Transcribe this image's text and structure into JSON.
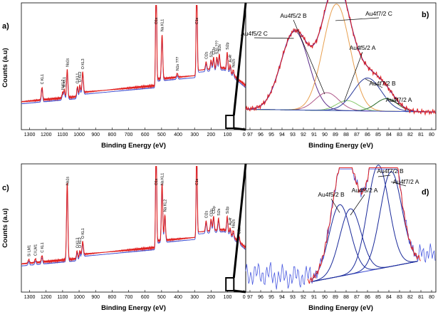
{
  "panels": [
    {
      "id": "a",
      "label": "a)",
      "type": "line",
      "xlabel": "Binding Energy (eV)",
      "ylabel": "Counts (a.u)",
      "x_reversed": true,
      "xlim": [
        1350,
        -10
      ],
      "ticks": [
        1300,
        1200,
        1100,
        1000,
        900,
        800,
        700,
        600,
        500,
        400,
        300,
        200,
        100,
        0
      ],
      "ylim": [
        0,
        100
      ],
      "peaks": [
        {
          "x": 1225,
          "label": "C KL1"
        },
        {
          "x": 1100,
          "label": "N KL2"
        },
        {
          "x": 1090,
          "label": "N KL1"
        },
        {
          "x": 1072,
          "label": "Na1s"
        },
        {
          "x": 1010,
          "label": "O KL1"
        },
        {
          "x": 995,
          "label": "O KL2"
        },
        {
          "x": 978,
          "label": "O KL3"
        },
        {
          "x": 533,
          "label": "O1s"
        },
        {
          "x": 497,
          "label": "Na KL1"
        },
        {
          "x": 405,
          "label": "N1s ???"
        },
        {
          "x": 287,
          "label": "C1s"
        },
        {
          "x": 230,
          "label": "Cl2s"
        },
        {
          "x": 200,
          "label": "S2s"
        },
        {
          "x": 185,
          "label": "Cl2p"
        },
        {
          "x": 165,
          "label": "S2p ???"
        },
        {
          "x": 150,
          "label": "Si2s"
        },
        {
          "x": 102,
          "label": "Si2p"
        },
        {
          "x": 84,
          "label": "Au4f"
        },
        {
          "x": 65,
          "label": "Na2s"
        }
      ]
    },
    {
      "id": "b",
      "label": "b)",
      "type": "line",
      "xlabel": "Binding Energy (eV)",
      "x_reversed": true,
      "xlim": [
        97.4,
        79.6
      ],
      "ticks": [
        97,
        96,
        95,
        94,
        93,
        92,
        91,
        90,
        89,
        88,
        87,
        86,
        85,
        84,
        83,
        82,
        81,
        80
      ],
      "ylim": [
        0,
        100
      ],
      "components": [
        {
          "name": "Au4f5/2 C",
          "center": 92.8,
          "height": 62,
          "width": 1.3,
          "color": "#5a2a88"
        },
        {
          "name": "Au4f5/2 B",
          "center": 89.8,
          "height": 14,
          "width": 1.1,
          "color": "#b05a8a"
        },
        {
          "name": "Au4f7/2 C",
          "center": 88.9,
          "height": 84,
          "width": 1.25,
          "color": "#e8a050"
        },
        {
          "name": "Au4f5/2 A",
          "center": 87.9,
          "height": 8,
          "width": 1.0,
          "color": "#86c86a"
        },
        {
          "name": "Au4f7/2 B",
          "center": 86.0,
          "height": 26,
          "width": 1.3,
          "color": "#2a3a9a"
        },
        {
          "name": "Au4f7/2 A",
          "center": 84.2,
          "height": 10,
          "width": 1.0,
          "color": "#2a6a2a"
        }
      ]
    },
    {
      "id": "c",
      "label": "c)",
      "type": "line",
      "xlabel": "Binding Energy (eV)",
      "ylabel": "Counts (a.u)",
      "x_reversed": true,
      "xlim": [
        1350,
        -10
      ],
      "ticks": [
        1300,
        1200,
        1100,
        1000,
        900,
        800,
        700,
        600,
        500,
        400,
        300,
        200,
        100,
        0
      ],
      "ylim": [
        0,
        100
      ],
      "peaks": [
        {
          "x": 1305,
          "label": "Si LM1"
        },
        {
          "x": 1265,
          "label": "Cl LM1"
        },
        {
          "x": 1225,
          "label": "C KL1"
        },
        {
          "x": 1072,
          "label": "Na1s"
        },
        {
          "x": 1012,
          "label": "O KL3"
        },
        {
          "x": 995,
          "label": "O KL2"
        },
        {
          "x": 978,
          "label": "O KL1"
        },
        {
          "x": 533,
          "label": "O1s"
        },
        {
          "x": 497,
          "label": "Na KL1"
        },
        {
          "x": 480,
          "label": "Na KL2"
        },
        {
          "x": 287,
          "label": "C1s"
        },
        {
          "x": 230,
          "label": "Cl2s"
        },
        {
          "x": 200,
          "label": "Cl2p"
        },
        {
          "x": 185,
          "label": "Cl2p"
        },
        {
          "x": 155,
          "label": "Si2s"
        },
        {
          "x": 102,
          "label": "Si2p"
        },
        {
          "x": 84,
          "label": "Au4f"
        },
        {
          "x": 65,
          "label": "Na2s"
        },
        {
          "x": 30,
          "label": "O2s"
        }
      ]
    },
    {
      "id": "d",
      "label": "d)",
      "type": "line",
      "xlabel": "Binding Energy (eV)",
      "x_reversed": true,
      "xlim": [
        97.4,
        79.6
      ],
      "ticks": [
        97,
        96,
        95,
        94,
        93,
        92,
        91,
        90,
        89,
        88,
        87,
        86,
        85,
        84,
        83,
        82,
        81,
        80
      ],
      "ylim": [
        0,
        100
      ],
      "components": [
        {
          "name": "Au4f5/2 B",
          "center": 88.6,
          "height": 62,
          "width": 1.0,
          "color": "#1a2a9a"
        },
        {
          "name": "Au4f5/2 A",
          "center": 87.6,
          "height": 58,
          "width": 1.0,
          "color": "#1a2a9a"
        },
        {
          "name": "Au4f7/2 B",
          "center": 85.0,
          "height": 90,
          "width": 1.0,
          "color": "#1a2a9a"
        },
        {
          "name": "Au4f7/2 A",
          "center": 83.8,
          "height": 84,
          "width": 1.0,
          "color": "#1a2a9a"
        }
      ]
    }
  ]
}
